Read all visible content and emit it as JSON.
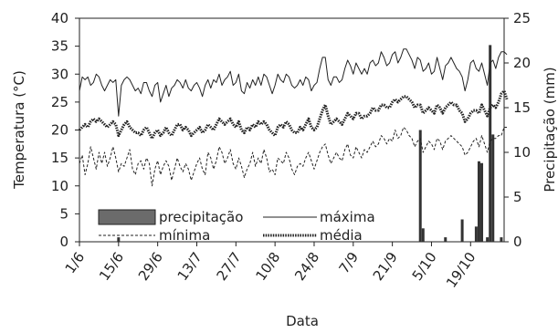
{
  "chart_data": {
    "type": "line",
    "xlabel": "Data",
    "ylabel": "Temperatura (°C)",
    "y2label": "Precipitação (mm)",
    "ylim": [
      0,
      40
    ],
    "y2lim": [
      0,
      25
    ],
    "yticks": [
      0,
      5,
      10,
      15,
      20,
      25,
      30,
      35,
      40
    ],
    "y2ticks": [
      0,
      5,
      10,
      15,
      20,
      25
    ],
    "xlim": [
      "2011-06-01",
      "2011-10-31"
    ],
    "xtick_labels": [
      "1/6",
      "15/6",
      "29/6",
      "13/7",
      "27/7",
      "10/8",
      "24/8",
      "7/9",
      "21/9",
      "5/10",
      "19/10"
    ],
    "xtick_dates": [
      "2011-06-01",
      "2011-06-15",
      "2011-06-29",
      "2011-07-13",
      "2011-07-27",
      "2011-08-10",
      "2011-08-24",
      "2011-09-07",
      "2011-09-21",
      "2011-10-05",
      "2011-10-19"
    ],
    "legend": {
      "placement": "bottom-center",
      "entries": [
        {
          "label": "precipitação",
          "style": "bar"
        },
        {
          "label": "máxima",
          "style": "solid"
        },
        {
          "label": "mínima",
          "style": "dashed"
        },
        {
          "label": "média",
          "style": "dotted-bold"
        }
      ]
    },
    "series": [
      {
        "name": "máxima",
        "axis": "left",
        "style": "solid",
        "x_start": "2011-06-01",
        "values": [
          27,
          29.5,
          29,
          29.5,
          28,
          28.5,
          30,
          29.5,
          28,
          27,
          28,
          29,
          28.5,
          29,
          22.5,
          28,
          29,
          29.5,
          29,
          28,
          27,
          27.5,
          26.5,
          28.5,
          28.5,
          27,
          26,
          28,
          28.5,
          25,
          26.5,
          28,
          26,
          27.5,
          28,
          29,
          28.5,
          27.5,
          29,
          27.5,
          27,
          28,
          28.5,
          27.5,
          26,
          28,
          29,
          27.5,
          29,
          28.5,
          30,
          28,
          29,
          29.5,
          30.5,
          28,
          28.5,
          30,
          27,
          26.5,
          28.5,
          27.5,
          29,
          28,
          29.5,
          28,
          30,
          29.5,
          28,
          26.5,
          28,
          30,
          29,
          28.5,
          30,
          29.5,
          28,
          27.5,
          28,
          29,
          28,
          29.5,
          29,
          27,
          28,
          28.5,
          31,
          33,
          33,
          29,
          28,
          29.5,
          29.5,
          28.5,
          29,
          31,
          32.5,
          31.5,
          30,
          32,
          31,
          30,
          31,
          30,
          32,
          32.5,
          31.5,
          32,
          34,
          33,
          31.5,
          32,
          33.5,
          34,
          32,
          33,
          34.5,
          34.5,
          33.5,
          32.5,
          31,
          33,
          32.5,
          30.5,
          31,
          32,
          30,
          30.5,
          33,
          31,
          29,
          31.5,
          32,
          33,
          32,
          31,
          30.5,
          29.5,
          27,
          29,
          32,
          32.5,
          31,
          30.5,
          32,
          30,
          28,
          32,
          32.5,
          31,
          33,
          34,
          34,
          33.5
        ]
      },
      {
        "name": "média",
        "axis": "left",
        "style": "dotted-bold",
        "x_start": "2011-06-01",
        "values": [
          20,
          20.5,
          21,
          20.5,
          21.5,
          22,
          21.5,
          22,
          21.5,
          21,
          20.5,
          21,
          21.5,
          21,
          19,
          20,
          21,
          21.5,
          20.5,
          20,
          19.5,
          19.5,
          19,
          20,
          20.5,
          19.5,
          18.5,
          19.5,
          20,
          19,
          19.5,
          20.5,
          19.5,
          19,
          20,
          21,
          21,
          20,
          20.5,
          20,
          19,
          19.5,
          20,
          20.5,
          19.5,
          20,
          21,
          20.5,
          20,
          21,
          22,
          21.5,
          21,
          21.5,
          22,
          21,
          20.5,
          21.5,
          20,
          19.5,
          20.5,
          20,
          21,
          20.5,
          21.5,
          21,
          21.5,
          21,
          20,
          19.5,
          19,
          20.5,
          21,
          20.5,
          21.5,
          21,
          20,
          19.5,
          19.5,
          20.5,
          20,
          21,
          22,
          20.5,
          20,
          20.5,
          22,
          23.5,
          24.5,
          22.5,
          21,
          21.5,
          22,
          21.5,
          21,
          22,
          23,
          22.5,
          22,
          23,
          23,
          22,
          22.5,
          22.5,
          23,
          24,
          23.5,
          23.5,
          24.5,
          24.5,
          24,
          24,
          25,
          25.5,
          25,
          25.5,
          26,
          26,
          25.5,
          25,
          24,
          24.5,
          24.5,
          23,
          23.5,
          24,
          23.5,
          23,
          24.5,
          24,
          23,
          24,
          24.5,
          25,
          24.5,
          24.5,
          23.5,
          23,
          21.5,
          22,
          23,
          23.5,
          23.5,
          23,
          24.5,
          23.5,
          22.5,
          24,
          24.5,
          24,
          25,
          26.5,
          27,
          25.5
        ]
      },
      {
        "name": "mínima",
        "axis": "left",
        "style": "dashed",
        "x_start": "2011-06-01",
        "values": [
          14,
          15.5,
          12,
          14,
          17,
          15,
          13,
          16,
          14,
          16,
          13.5,
          15,
          17,
          15,
          12.5,
          14,
          13.5,
          15,
          16.5,
          13,
          12,
          14,
          14.5,
          13,
          15,
          14,
          10,
          13,
          14.5,
          12,
          13.5,
          14.5,
          13.5,
          11,
          13,
          15,
          13.5,
          12.5,
          14,
          13,
          11,
          12.5,
          14,
          15,
          13,
          12,
          16,
          15,
          13,
          14.5,
          17,
          16,
          14,
          15,
          16.5,
          14,
          13,
          15,
          13.5,
          11.5,
          13,
          14,
          16,
          13.5,
          15,
          14,
          16.5,
          15,
          12.5,
          13,
          12,
          15,
          14.5,
          14,
          16,
          15,
          13,
          12,
          13.5,
          14,
          13.5,
          15,
          16,
          14.5,
          13,
          14.5,
          16,
          17,
          17.5,
          15.5,
          14,
          15,
          16,
          15,
          14.5,
          16.5,
          17.5,
          15.5,
          15,
          17,
          16,
          15,
          16.5,
          16,
          17,
          18,
          17,
          17.5,
          19,
          18.5,
          17.5,
          18.5,
          18,
          20,
          18.5,
          19,
          20.5,
          20,
          19,
          18.5,
          17,
          18,
          18.5,
          16,
          17,
          18,
          17.5,
          16.5,
          18.5,
          18,
          16.5,
          18,
          18.5,
          19,
          18.5,
          18,
          17.5,
          17,
          15.5,
          16,
          17,
          18,
          18.5,
          17,
          19,
          17.5,
          16,
          18,
          18.5,
          18.5,
          19,
          19,
          20.5,
          20.5
        ]
      },
      {
        "name": "precipitação",
        "axis": "right",
        "style": "bar",
        "dates": [
          "2011-06-15",
          "2011-10-01",
          "2011-10-02",
          "2011-10-10",
          "2011-10-16",
          "2011-10-21",
          "2011-10-22",
          "2011-10-23",
          "2011-10-25",
          "2011-10-26",
          "2011-10-27",
          "2011-10-30"
        ],
        "values": [
          0.5,
          12.5,
          1.5,
          0.5,
          2.5,
          1.7,
          9,
          8.8,
          0.5,
          22,
          12,
          0.5
        ]
      }
    ]
  }
}
